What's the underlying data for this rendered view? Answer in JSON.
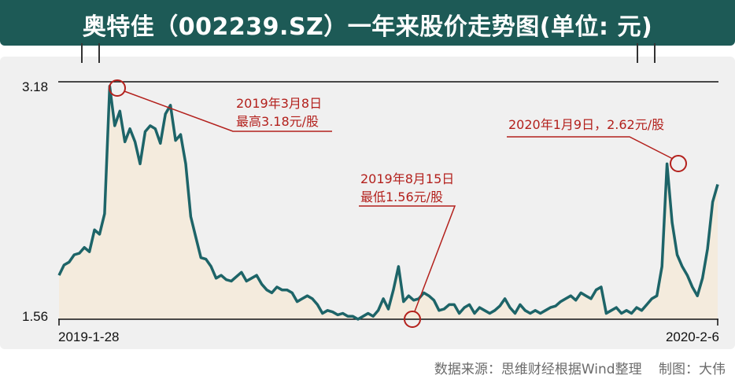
{
  "title": "奥特佳（002239.SZ）一年来股价走势图(单位: 元)",
  "footer": {
    "source": "数据来源：思维财经根据Wind整理",
    "author": "制图：大伟"
  },
  "colors": {
    "title_bg": "#1d5a56",
    "line": "#1d6468",
    "fill": "#f4ebdd",
    "annotation": "#b3201c",
    "panel_bg": "#f0f0f0"
  },
  "chart_data": {
    "type": "area",
    "title": "奥特佳（002239.SZ）一年来股价走势图(单位: 元)",
    "xlabel": "",
    "ylabel": "",
    "y_ticks": [
      "3.18",
      "1.56"
    ],
    "ylim": [
      1.56,
      3.18
    ],
    "x_ticks": [
      "2019-1-28",
      "2020-2-6"
    ],
    "grid": false,
    "series": [
      {
        "values": [
          1.86,
          1.93,
          1.95,
          2.0,
          2.01,
          2.05,
          2.02,
          2.17,
          2.14,
          2.28,
          3.15,
          2.88,
          2.98,
          2.77,
          2.86,
          2.77,
          2.62,
          2.84,
          2.88,
          2.86,
          2.76,
          2.96,
          3.02,
          2.78,
          2.82,
          2.62,
          2.26,
          2.12,
          1.98,
          1.97,
          1.92,
          1.84,
          1.86,
          1.83,
          1.82,
          1.85,
          1.88,
          1.82,
          1.84,
          1.86,
          1.8,
          1.76,
          1.74,
          1.78,
          1.76,
          1.76,
          1.74,
          1.68,
          1.7,
          1.72,
          1.7,
          1.66,
          1.6,
          1.62,
          1.61,
          1.59,
          1.6,
          1.58,
          1.58,
          1.56,
          1.58,
          1.6,
          1.58,
          1.62,
          1.7,
          1.63,
          1.76,
          1.92,
          1.68,
          1.72,
          1.69,
          1.7,
          1.74,
          1.72,
          1.69,
          1.62,
          1.63,
          1.66,
          1.66,
          1.6,
          1.64,
          1.66,
          1.6,
          1.64,
          1.62,
          1.6,
          1.62,
          1.65,
          1.7,
          1.64,
          1.6,
          1.66,
          1.62,
          1.6,
          1.62,
          1.6,
          1.62,
          1.64,
          1.65,
          1.68,
          1.7,
          1.72,
          1.69,
          1.74,
          1.72,
          1.7,
          1.76,
          1.78,
          1.6,
          1.62,
          1.64,
          1.6,
          1.62,
          1.6,
          1.64,
          1.62,
          1.66,
          1.7,
          1.72,
          1.92,
          2.62,
          2.22,
          2.0,
          1.92,
          1.86,
          1.78,
          1.72,
          1.84,
          2.04,
          2.36,
          2.48
        ],
        "color": "#1d6468"
      }
    ],
    "annotations": [
      {
        "lines": [
          "2019年3月8日",
          "最高3.18元/股"
        ],
        "point": "max"
      },
      {
        "lines": [
          "2019年8月15日",
          "最低1.56元/股"
        ],
        "point": "min"
      },
      {
        "lines": [
          "2020年1月9日，2.62元/股"
        ],
        "point": "jan9"
      }
    ]
  }
}
